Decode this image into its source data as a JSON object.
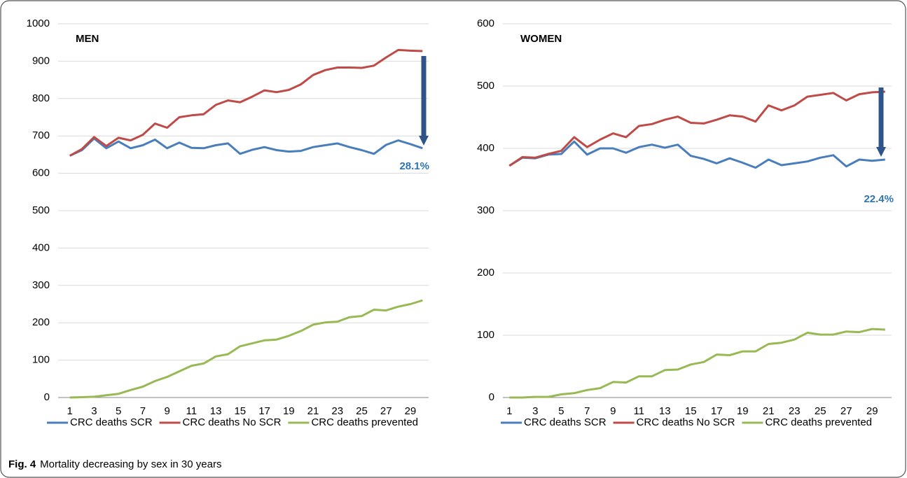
{
  "chart_data": [
    {
      "type": "line",
      "title": "MEN",
      "categories": [
        1,
        null,
        3,
        null,
        5,
        null,
        7,
        null,
        9,
        null,
        11,
        null,
        13,
        null,
        15,
        null,
        17,
        null,
        19,
        null,
        21,
        null,
        23,
        null,
        25,
        null,
        27,
        null,
        29,
        null
      ],
      "series": [
        {
          "name": "CRC deaths SCR",
          "color": "#4a7ebb",
          "values": [
            647,
            662,
            693,
            667,
            685,
            667,
            675,
            690,
            667,
            682,
            668,
            667,
            675,
            680,
            652,
            663,
            670,
            662,
            658,
            660,
            670,
            675,
            680,
            670,
            662,
            652,
            676,
            688,
            678,
            667
          ]
        },
        {
          "name": "CRC deaths No SCR",
          "color": "#be4b48",
          "values": [
            647,
            665,
            697,
            673,
            695,
            688,
            703,
            733,
            722,
            750,
            755,
            758,
            783,
            795,
            790,
            805,
            822,
            817,
            823,
            838,
            863,
            876,
            883,
            883,
            882,
            888,
            910,
            930,
            928,
            927
          ]
        },
        {
          "name": "CRC deaths prevented",
          "color": "#98b954",
          "values": [
            0,
            1,
            2,
            6,
            10,
            20,
            29,
            44,
            55,
            70,
            85,
            91,
            110,
            116,
            137,
            145,
            153,
            155,
            165,
            178,
            195,
            201,
            203,
            215,
            218,
            235,
            233,
            243,
            250,
            260
          ]
        }
      ],
      "ylim": [
        0,
        1000
      ],
      "yticks": [
        0,
        100,
        200,
        300,
        400,
        500,
        600,
        700,
        800,
        900,
        1000
      ],
      "grid": true,
      "annotation": "28.1%",
      "annotation_color": "#2e75b6",
      "arrow_color": "#2f5489"
    },
    {
      "type": "line",
      "title": "WOMEN",
      "categories": [
        1,
        null,
        3,
        null,
        5,
        null,
        7,
        null,
        9,
        null,
        11,
        null,
        13,
        null,
        15,
        null,
        17,
        null,
        19,
        null,
        21,
        null,
        23,
        null,
        25,
        null,
        27,
        null,
        29,
        null
      ],
      "series": [
        {
          "name": "CRC deaths SCR",
          "color": "#4a7ebb",
          "values": [
            372,
            385,
            384,
            390,
            391,
            411,
            390,
            400,
            400,
            393,
            402,
            406,
            401,
            406,
            388,
            383,
            376,
            384,
            377,
            369,
            382,
            373,
            376,
            379,
            385,
            389,
            371,
            382,
            380,
            382
          ]
        },
        {
          "name": "CRC deaths No SCR",
          "color": "#be4b48",
          "values": [
            372,
            386,
            385,
            391,
            396,
            418,
            402,
            414,
            424,
            418,
            436,
            439,
            446,
            451,
            441,
            440,
            446,
            453,
            451,
            443,
            469,
            461,
            469,
            483,
            486,
            489,
            477,
            487,
            490,
            491
          ]
        },
        {
          "name": "CRC deaths prevented",
          "color": "#98b954",
          "values": [
            0,
            0,
            1,
            1,
            5,
            7,
            12,
            15,
            25,
            24,
            34,
            34,
            44,
            45,
            53,
            57,
            69,
            68,
            74,
            74,
            86,
            88,
            93,
            104,
            101,
            101,
            106,
            105,
            110,
            109
          ]
        }
      ],
      "ylim": [
        0,
        600
      ],
      "yticks": [
        0,
        100,
        200,
        300,
        400,
        500,
        600
      ],
      "grid": true,
      "annotation": "22.4%",
      "annotation_color": "#2e75b6",
      "arrow_color": "#2f5489"
    }
  ],
  "caption": {
    "label": "Fig. 4",
    "text": "Mortality decreasing by sex in 30 years"
  }
}
